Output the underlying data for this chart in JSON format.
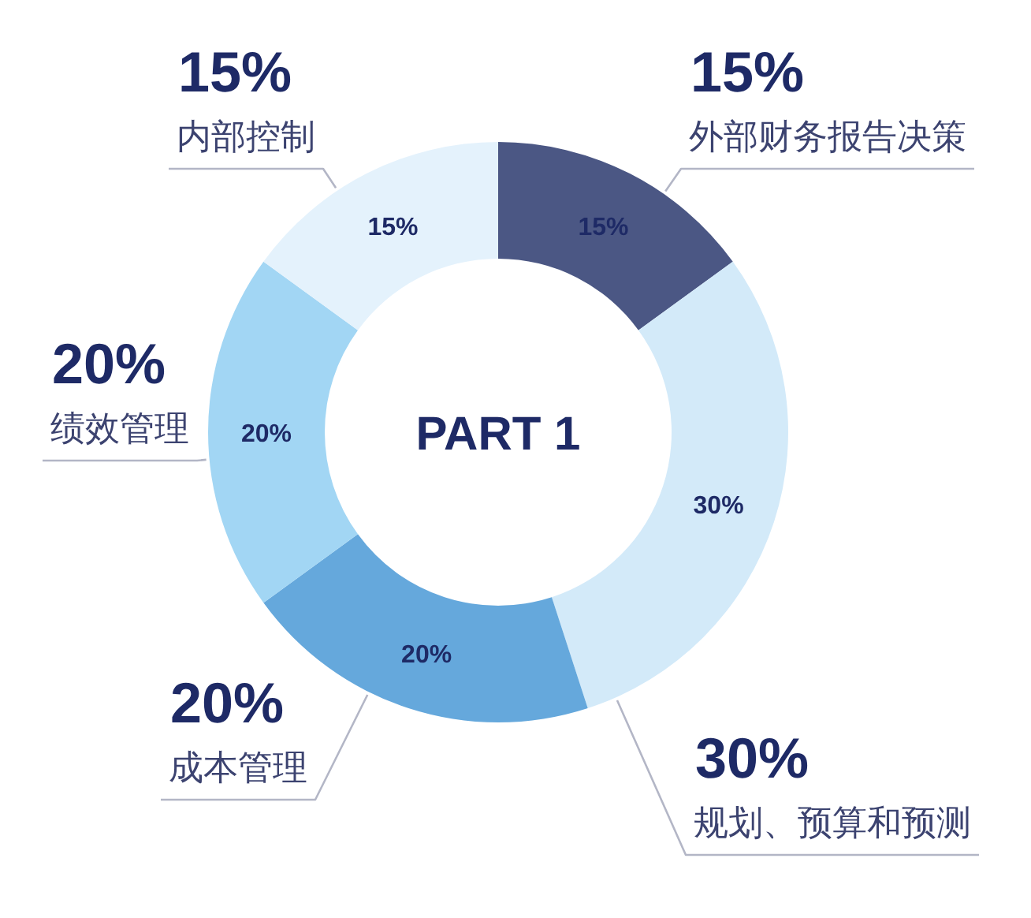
{
  "chart_data": {
    "type": "donut",
    "title": "PART 1",
    "categories": [
      "外部财务报告决策",
      "规划、预算和预测",
      "成本管理",
      "绩效管理",
      "内部控制"
    ],
    "values": [
      15,
      30,
      20,
      20,
      15
    ],
    "colors": [
      "#4b5784",
      "#d3eaf9",
      "#65a8dc",
      "#a2d6f4",
      "#e4f2fc"
    ],
    "value_labels": [
      "15%",
      "30%",
      "20%",
      "20%",
      "15%"
    ]
  }
}
